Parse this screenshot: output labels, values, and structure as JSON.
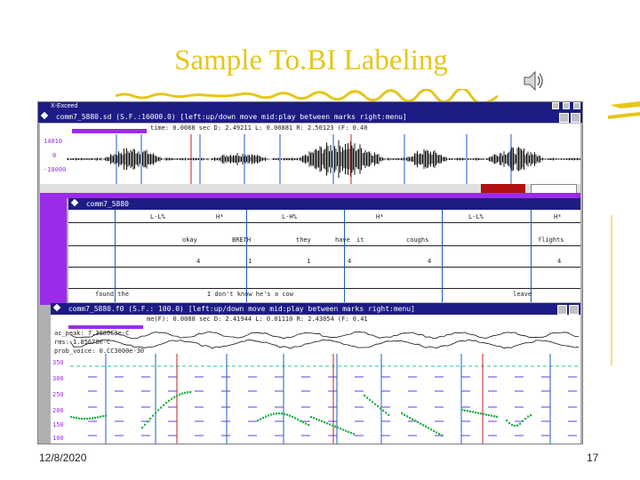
{
  "slide": {
    "title": "Sample To.BI Labeling",
    "date": "12/8/2020",
    "page_number": "17"
  },
  "app": {
    "name": "X-Exceed"
  },
  "waveform_window": {
    "title": "comm7_5880.sd (S.F.:16000.0) [left:up/down move  mid:play between marks  right:menu]",
    "readout": "time: 0.0088 sec          D: 2.49211   L: 0.00881   R: 2.50123 (F: 0.40",
    "y_ticks": [
      "14010",
      "0",
      "-10000"
    ]
  },
  "labels_window": {
    "title": "comm7_5880",
    "tone_row": [
      "L-L%",
      "H*",
      "L-H%",
      "H*",
      "L-L%",
      "H*"
    ],
    "words": [
      "okay",
      "BRETH",
      "they",
      "have",
      "it",
      "coughs",
      "flights"
    ],
    "break_row": [
      "4",
      "1",
      "1",
      "4",
      "4",
      "4"
    ],
    "misc": [
      "found the",
      "I don't know he's a cow",
      "leave"
    ]
  },
  "pitch_window": {
    "title": "comm7_5880.f0 (S.F.: 100.0) [left:up/down move  mid:play between marks  right:menu]",
    "readout": "me(F): 0.0088 sec        D: 2.41944   L: 0.01110   R: 2.43054 (F: 0.41",
    "info_lines": [
      "ac_peak: 7.3880C3e-C",
      "rms: 1.85678e-C",
      "prob_voice: 0.CC3000e-30"
    ],
    "y_ticks": [
      "350",
      "300",
      "250",
      "200",
      "150",
      "100"
    ]
  },
  "colors": {
    "title": "#e6c619",
    "titlebar": "#1c1c84",
    "accent_purple": "#9a2be8",
    "marker_blue": "#1c5cc8",
    "marker_red": "#c81c1c",
    "pitch_green": "#22b04a"
  },
  "icons": {
    "speaker": "speaker-icon",
    "decoration": "z-bar-decoration"
  }
}
